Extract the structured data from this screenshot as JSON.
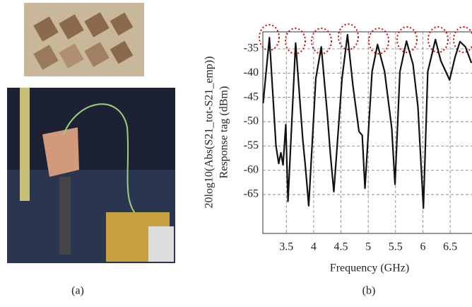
{
  "captions": [
    "(a)",
    "(b)"
  ],
  "chart_data": {
    "type": "line",
    "xlabel": "Frequency (GHz)",
    "ylabel": [
      "20log10(Abs(S21_tot-S21_emp))",
      "Response tag (dBm)"
    ],
    "x": [
      3.075,
      3.19,
      3.31,
      3.36,
      3.4,
      3.44,
      3.49,
      3.53,
      3.67,
      3.8,
      3.85,
      3.91,
      4.04,
      4.14,
      4.25,
      4.31,
      4.37,
      4.52,
      4.62,
      4.72,
      4.83,
      4.89,
      4.94,
      5.07,
      5.17,
      5.3,
      5.43,
      5.49,
      5.58,
      5.7,
      5.82,
      5.91,
      6.01,
      6.09,
      6.23,
      6.33,
      6.4,
      6.49,
      6.59,
      6.68,
      6.78,
      6.89
    ],
    "series": [
      {
        "color": "#111111",
        "values": [
          -46.2,
          -32.7,
          -54.9,
          -58.6,
          -56.4,
          -58.9,
          -50.6,
          -66.4,
          -33.8,
          -53.5,
          -59.3,
          -67.3,
          -41.1,
          -34.6,
          -48.4,
          -57.1,
          -64.4,
          -41.1,
          -32.1,
          -42.6,
          -52.0,
          -52.8,
          -63.7,
          -39.7,
          -34.1,
          -39.7,
          -51.3,
          -62.9,
          -39.7,
          -33.4,
          -38.2,
          -46.9,
          -67.8,
          -39.7,
          -33.1,
          -37.5,
          -39.2,
          -41.4,
          -36.7,
          -33.5,
          -34.6,
          -37.9
        ]
      }
    ],
    "xlim": [
      3.07,
      6.9
    ],
    "xticks": [
      3.5,
      4,
      4.5,
      5,
      5.5,
      6,
      6.5
    ],
    "ylim": [
      -73,
      -31.5
    ],
    "yticks": [
      -65,
      -60,
      -55,
      -50,
      -45,
      -40,
      -35
    ],
    "grid": true
  }
}
